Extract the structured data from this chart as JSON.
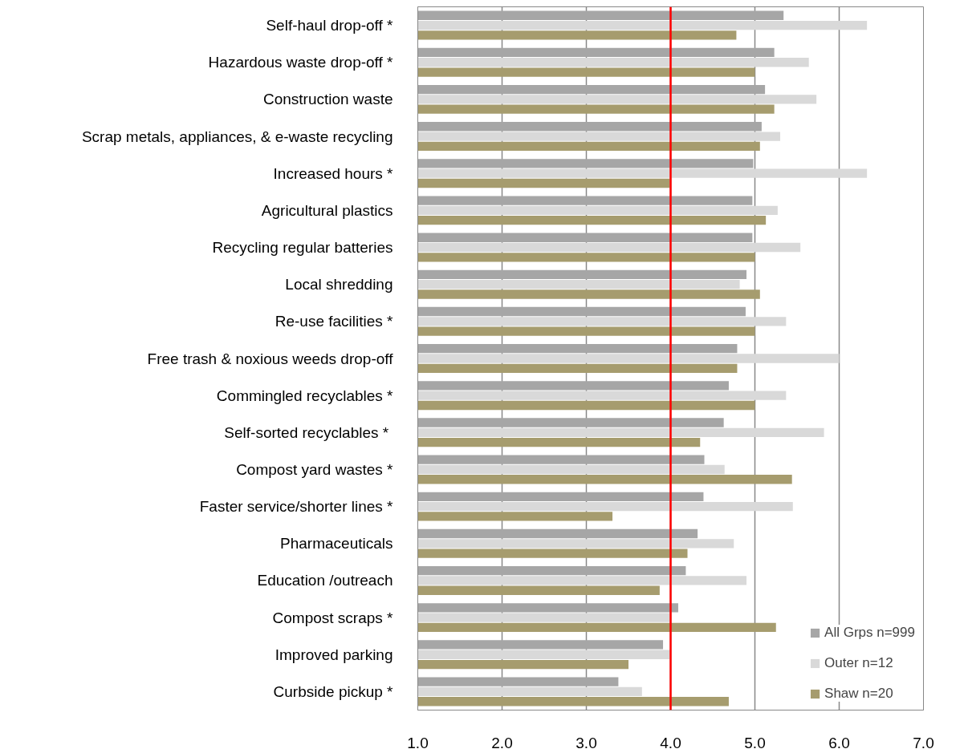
{
  "chart_data": {
    "type": "bar",
    "orientation": "horizontal",
    "categories": [
      "Self-haul drop-off *",
      "Hazardous waste drop-off *",
      "Construction waste",
      "Scrap metals, appliances, & e-waste recycling",
      "Increased hours *",
      "Agricultural plastics",
      "Recycling regular batteries",
      "Local shredding",
      "Re-use facilities *",
      "Free trash & noxious weeds drop-off",
      "Commingled recyclables *",
      "Self-sorted  recyclables *",
      "Compost yard wastes *",
      "Faster service/shorter lines *",
      "Pharmaceuticals",
      "Education /outreach",
      "Compost scraps *",
      "Improved parking",
      "Curbside pickup *"
    ],
    "series": [
      {
        "name": "All Grps n=999",
        "color": "#a6a6a6",
        "values": [
          5.34,
          5.23,
          5.12,
          5.08,
          4.98,
          4.97,
          4.97,
          4.9,
          4.89,
          4.79,
          4.69,
          4.63,
          4.4,
          4.39,
          4.32,
          4.18,
          4.09,
          3.91,
          3.38
        ]
      },
      {
        "name": "Outer n=12",
        "color": "#d9d9d9",
        "values": [
          6.33,
          5.64,
          5.73,
          5.3,
          6.33,
          5.27,
          5.54,
          4.82,
          5.37,
          6.0,
          5.37,
          5.82,
          4.64,
          5.45,
          4.75,
          4.9,
          3.99,
          3.99,
          3.66
        ]
      },
      {
        "name": "Shaw n=20",
        "color": "#a69c6e",
        "values": [
          4.78,
          5.0,
          5.23,
          5.06,
          3.99,
          5.13,
          5.0,
          5.06,
          5.0,
          4.79,
          5.0,
          4.35,
          5.44,
          3.31,
          4.2,
          3.87,
          5.25,
          3.5,
          4.69
        ]
      }
    ],
    "xlim": [
      1.0,
      7.0
    ],
    "xticks": [
      {
        "value": 1,
        "label": "1.0"
      },
      {
        "value": 2,
        "label": "2.0"
      },
      {
        "value": 3,
        "label": "3.0"
      },
      {
        "value": 4,
        "label": "4.0"
      },
      {
        "value": 5,
        "label": "5.0"
      },
      {
        "value": 6,
        "label": "6.0"
      },
      {
        "value": 7,
        "label": "7.0"
      }
    ],
    "grid": "x",
    "legend": "bottom right",
    "ref_lines": [
      {
        "axis": "x",
        "value": 4.0,
        "color": "#ff0000"
      }
    ]
  }
}
